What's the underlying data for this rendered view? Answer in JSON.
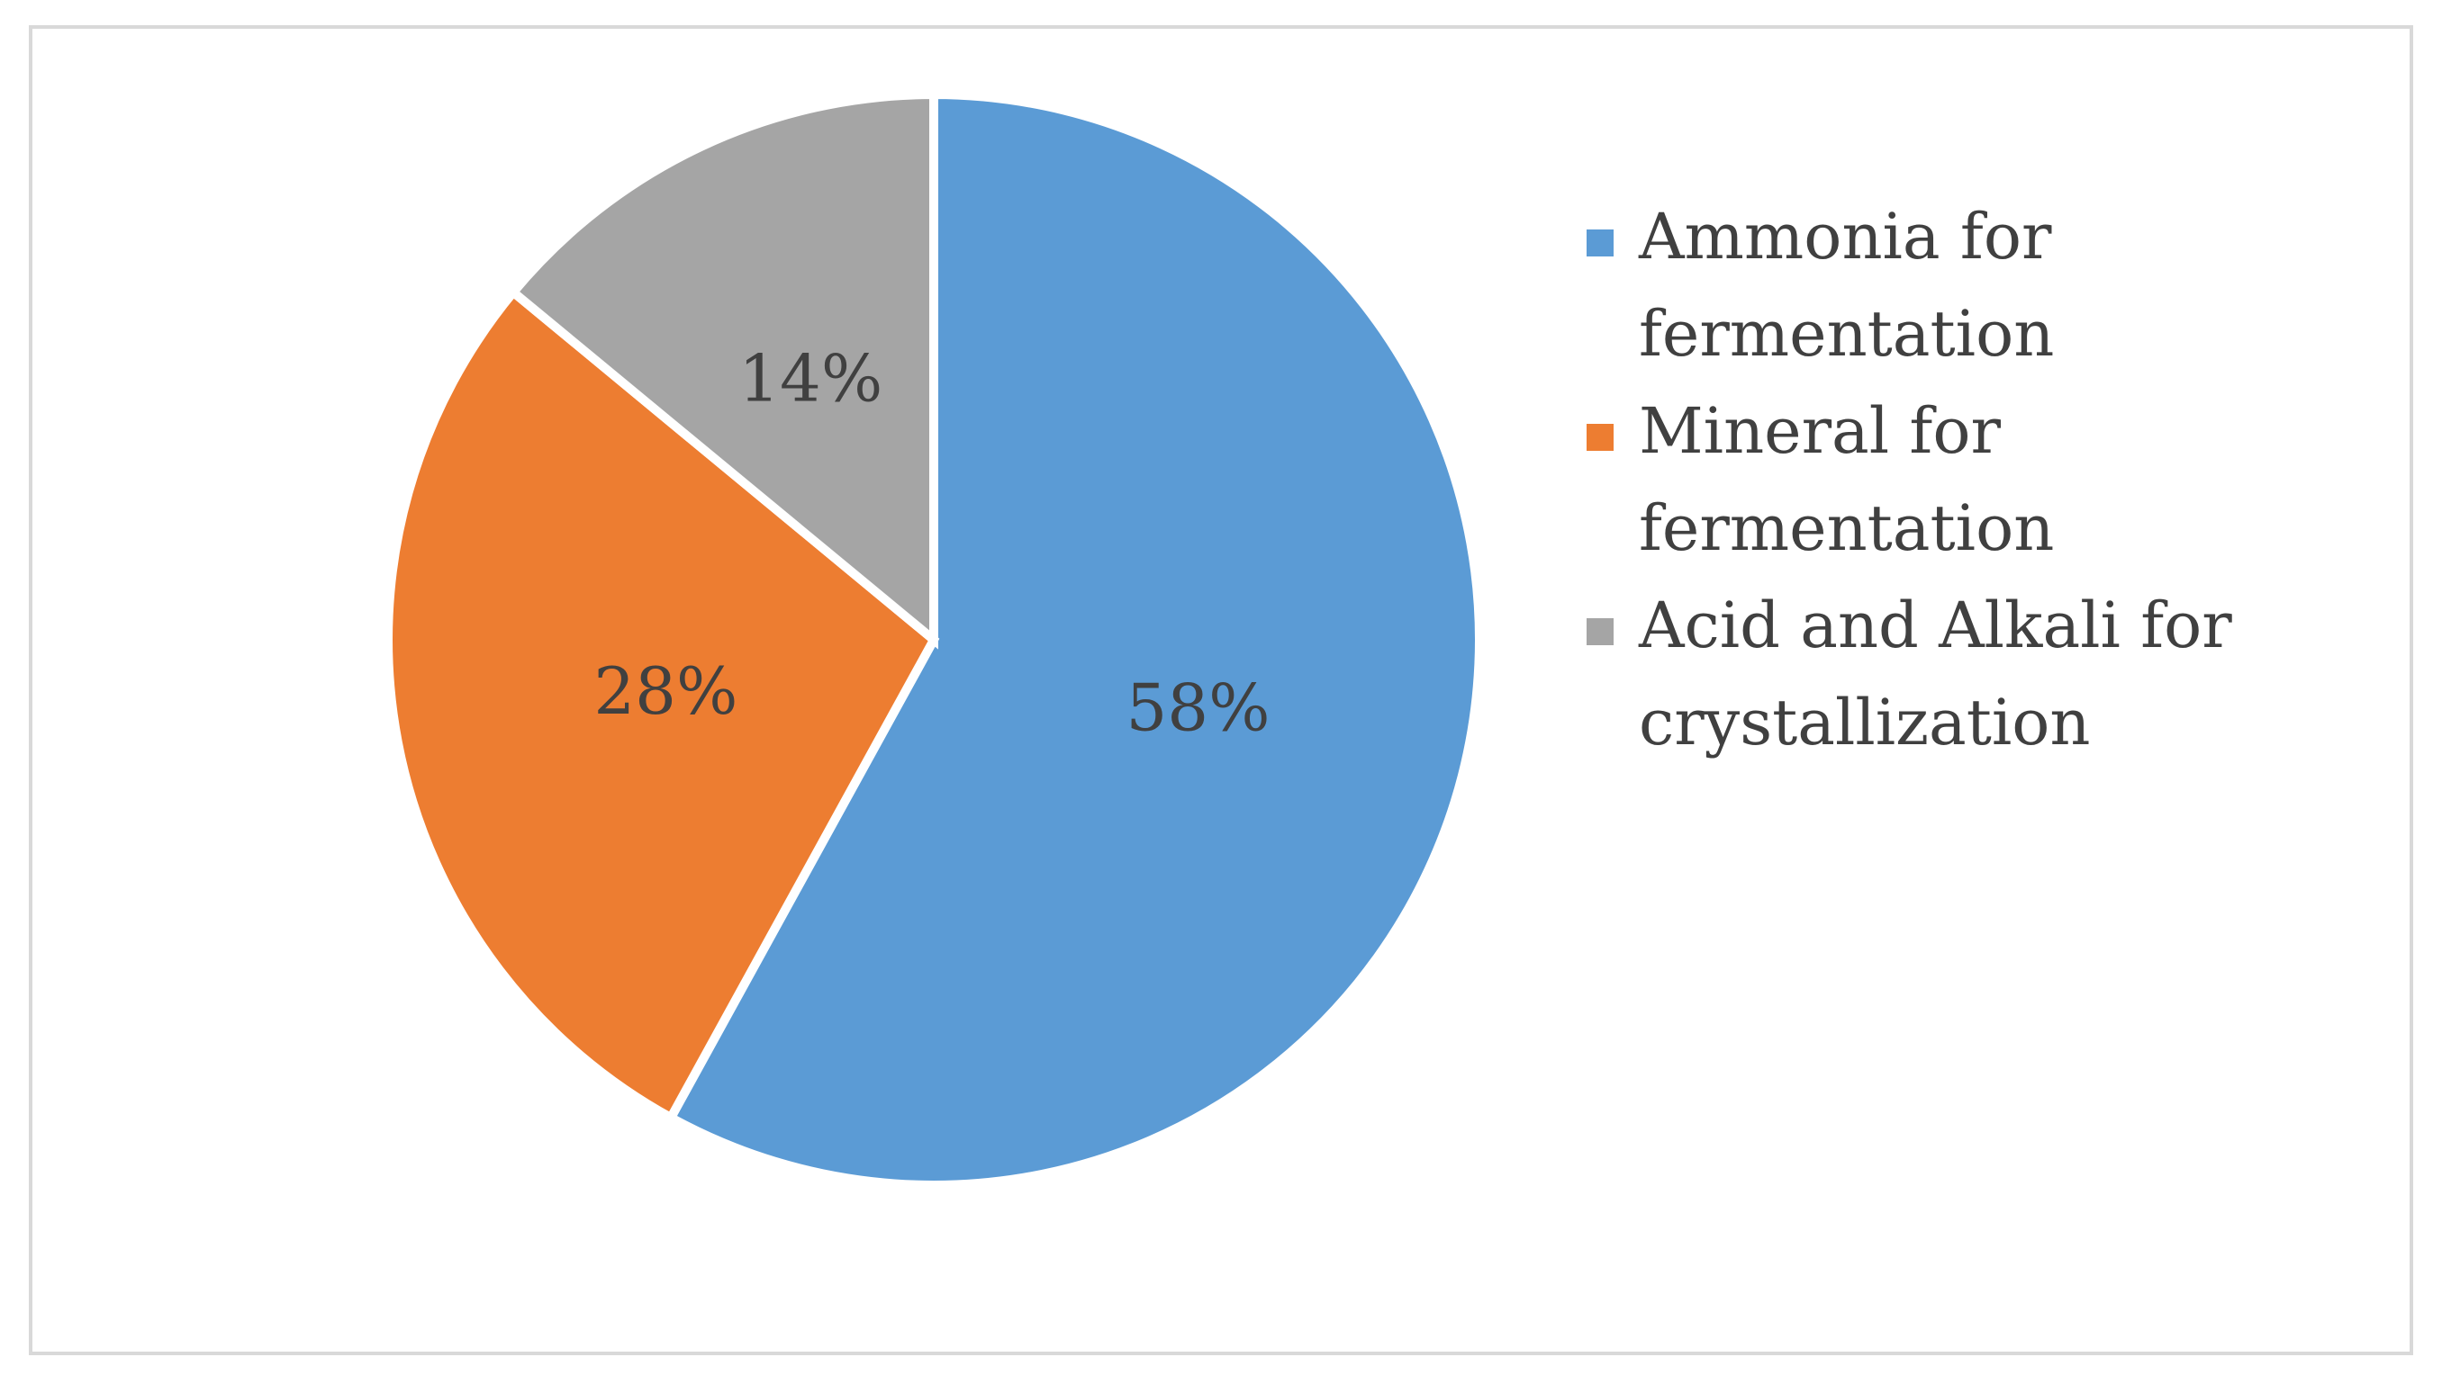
{
  "chart_data": {
    "type": "pie",
    "categories": [
      "Ammonia for fermentation",
      "Mineral for fermentation",
      "Acid and Alkali for crystallization"
    ],
    "values": [
      58,
      28,
      14
    ],
    "data_labels": [
      "58%",
      "28%",
      "14%"
    ],
    "colors": [
      "#5b9bd5",
      "#ed7d31",
      "#a5a5a5"
    ],
    "legend": {
      "placement": "right",
      "entries": [
        {
          "lines": [
            "Ammonia for",
            "fermentation"
          ]
        },
        {
          "lines": [
            "Mineral for",
            "fermentation"
          ]
        },
        {
          "lines": [
            "Acid and Alkali for",
            "crystallization"
          ]
        }
      ]
    },
    "title": ""
  }
}
